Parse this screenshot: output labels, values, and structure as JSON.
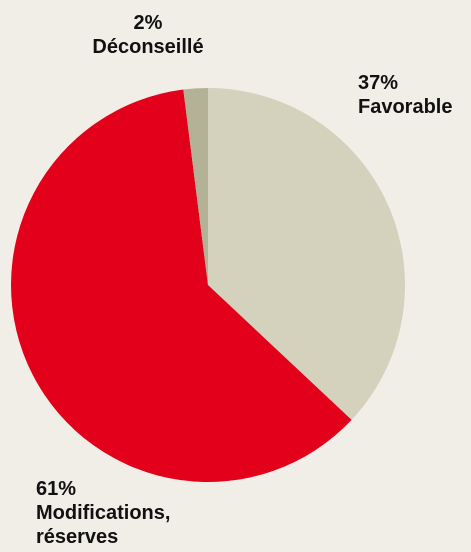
{
  "chart_data": {
    "type": "pie",
    "slices": [
      {
        "label": "Favorable",
        "percent_label": "37%",
        "value": 37,
        "color": "#d4d1bd"
      },
      {
        "label": "Modifications, réserves",
        "label_lines": [
          "Modifications,",
          "réserves"
        ],
        "percent_label": "61%",
        "value": 61,
        "color": "#e2001a"
      },
      {
        "label": "Déconseillé",
        "percent_label": "2%",
        "value": 2,
        "color": "#b4b296"
      }
    ]
  }
}
